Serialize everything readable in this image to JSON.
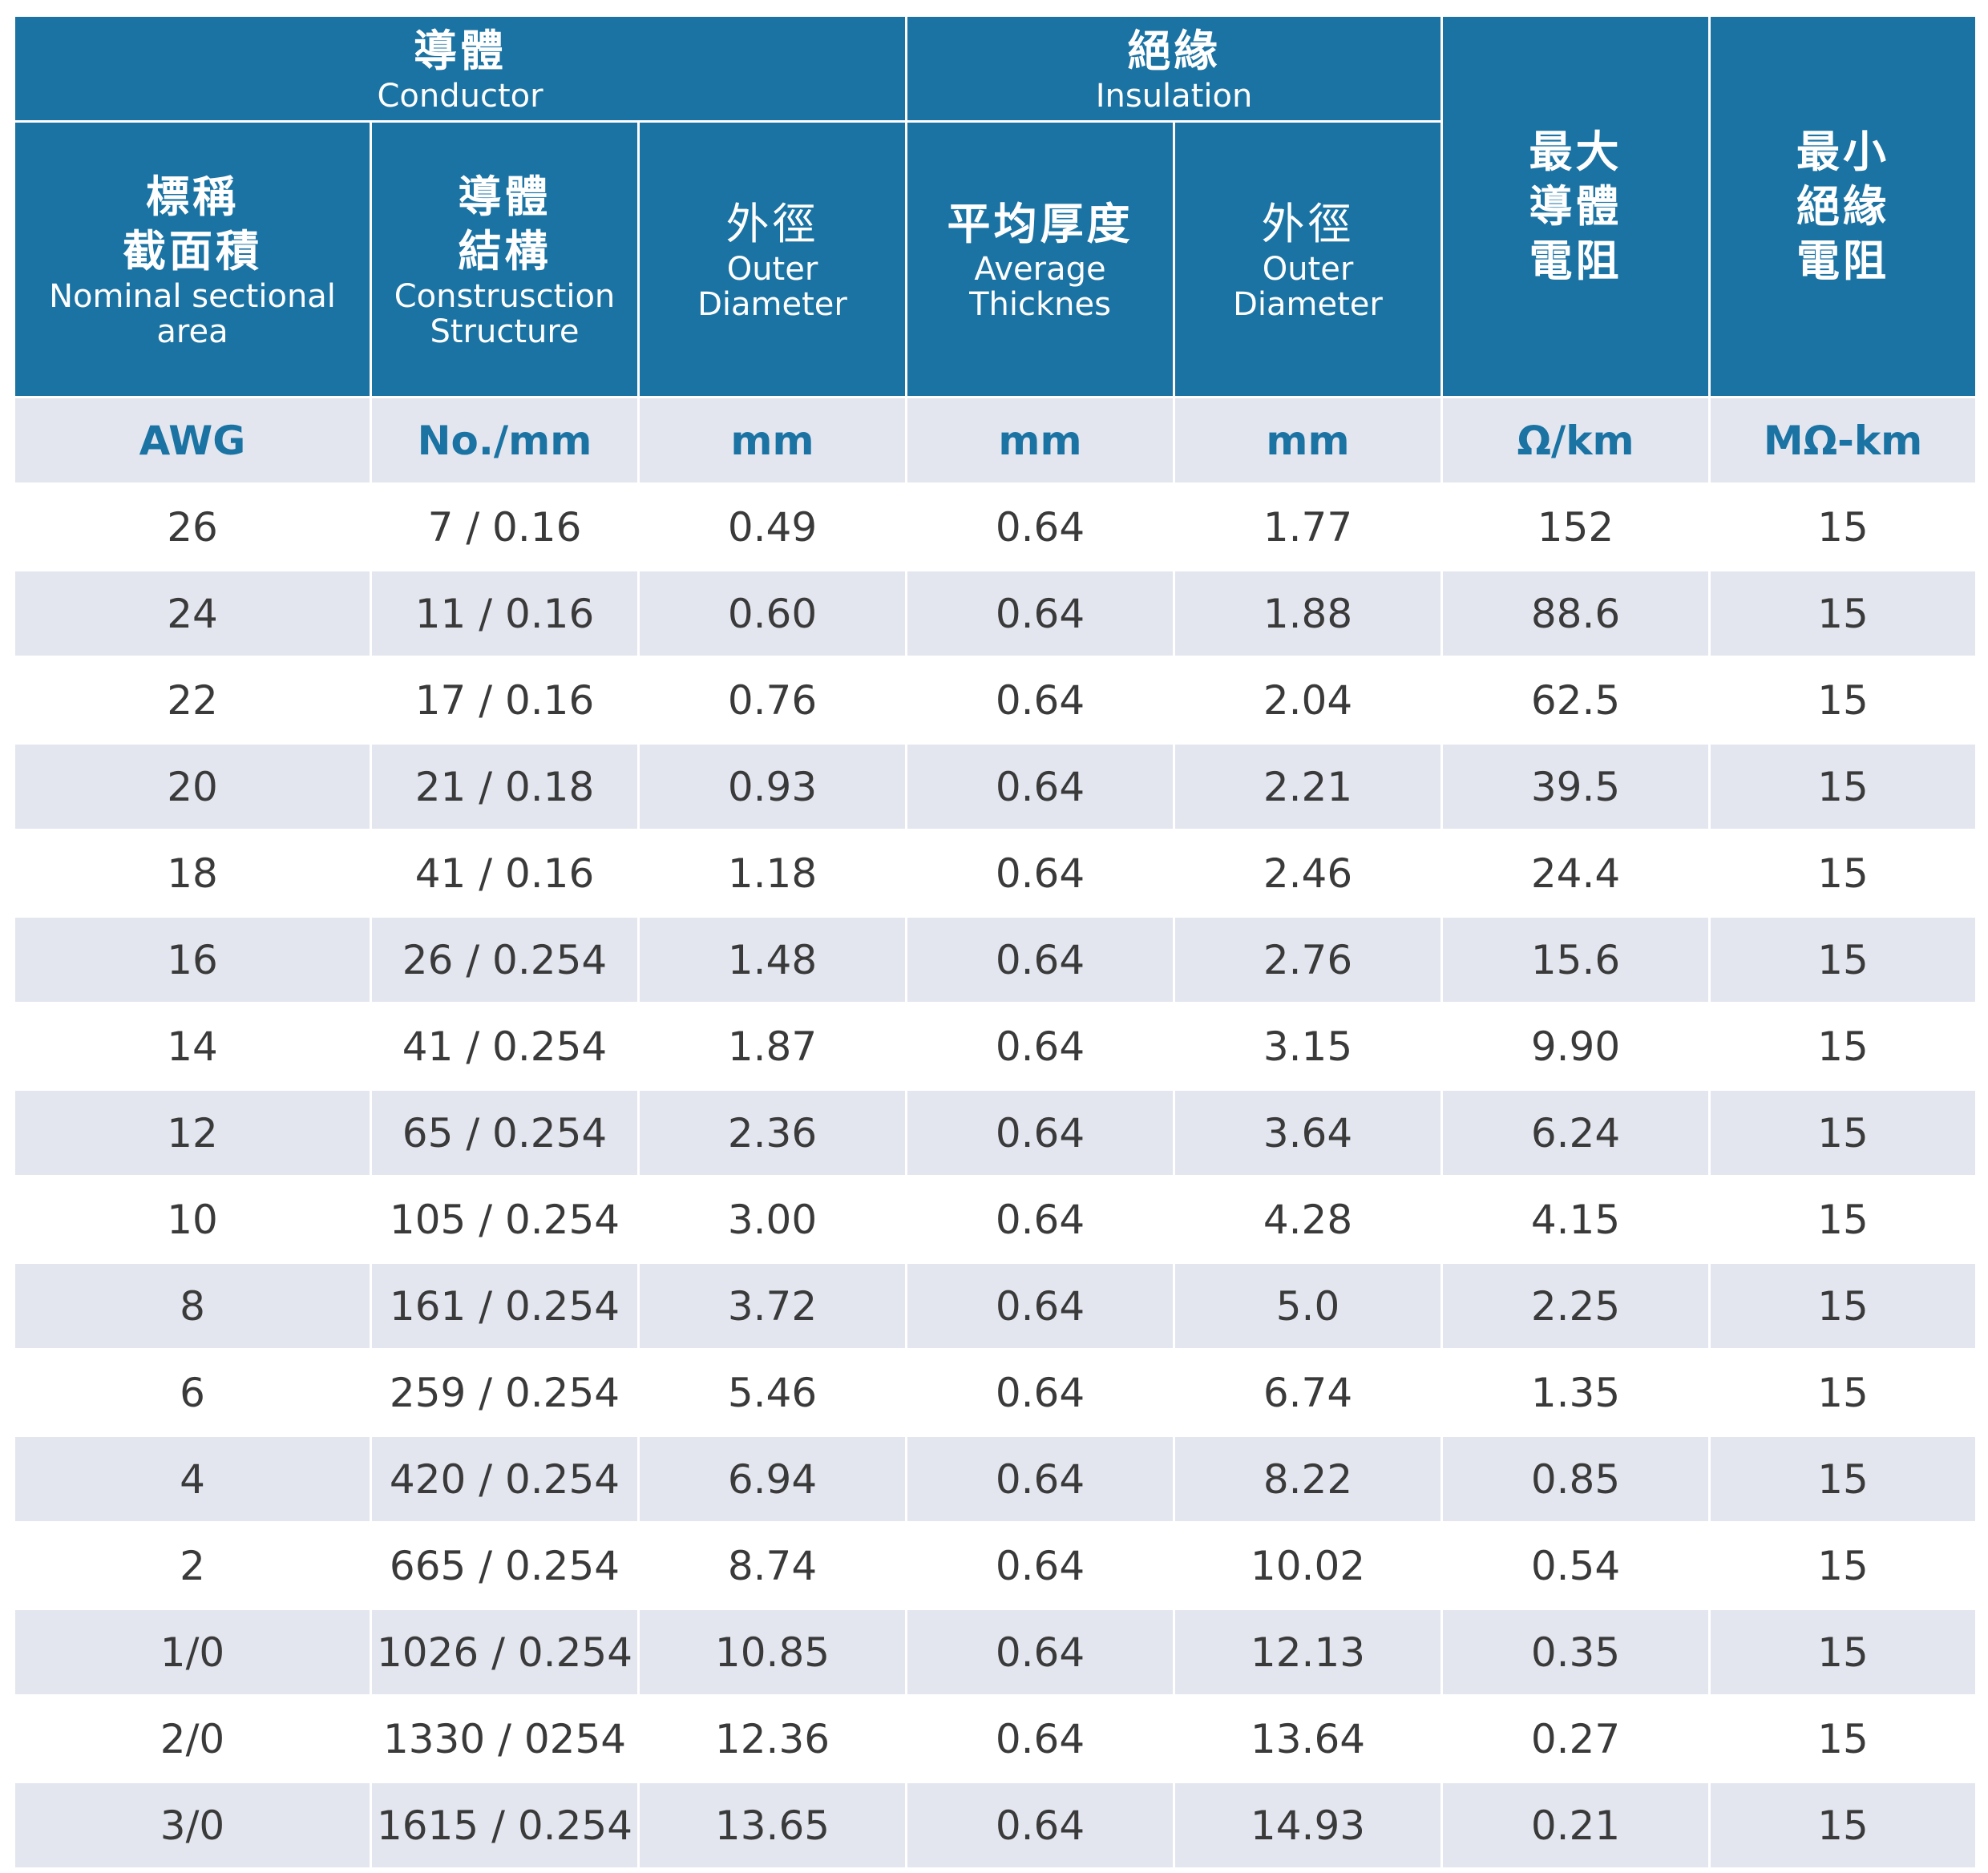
{
  "header": {
    "conductor": {
      "zh": "導體",
      "en": "Conductor"
    },
    "insulation": {
      "zh": "絕緣",
      "en": "Insulation"
    },
    "max_resistance": {
      "zh": [
        "最大",
        "導體",
        "電阻"
      ]
    },
    "min_insulation": {
      "zh": [
        "最小",
        "絕緣",
        "電阻"
      ]
    },
    "nominal": {
      "zh": [
        "標稱",
        "截面積"
      ],
      "en": [
        "Nominal sectional",
        "area"
      ]
    },
    "construction": {
      "zh": [
        "導體",
        "結構"
      ],
      "en": [
        "Construsction",
        "Structure"
      ]
    },
    "cond_outer": {
      "zh": "外徑",
      "en": [
        "Outer",
        "Diameter"
      ]
    },
    "avg_thickness": {
      "zh": "平均厚度",
      "en": [
        "Average",
        "Thicknes"
      ]
    },
    "ins_outer": {
      "zh": "外徑",
      "en": [
        "Outer",
        "Diameter"
      ]
    }
  },
  "units": [
    "AWG",
    "No./mm",
    "mm",
    "mm",
    "mm",
    "Ω/km",
    "MΩ-km"
  ],
  "rows": [
    [
      "26",
      "7 / 0.16",
      "0.49",
      "0.64",
      "1.77",
      "152",
      "15"
    ],
    [
      "24",
      "11 / 0.16",
      "0.60",
      "0.64",
      "1.88",
      "88.6",
      "15"
    ],
    [
      "22",
      "17 / 0.16",
      "0.76",
      "0.64",
      "2.04",
      "62.5",
      "15"
    ],
    [
      "20",
      "21 / 0.18",
      "0.93",
      "0.64",
      "2.21",
      "39.5",
      "15"
    ],
    [
      "18",
      "41 / 0.16",
      "1.18",
      "0.64",
      "2.46",
      "24.4",
      "15"
    ],
    [
      "16",
      "26 / 0.254",
      "1.48",
      "0.64",
      "2.76",
      "15.6",
      "15"
    ],
    [
      "14",
      "41 / 0.254",
      "1.87",
      "0.64",
      "3.15",
      "9.90",
      "15"
    ],
    [
      "12",
      "65 / 0.254",
      "2.36",
      "0.64",
      "3.64",
      "6.24",
      "15"
    ],
    [
      "10",
      "105 / 0.254",
      "3.00",
      "0.64",
      "4.28",
      "4.15",
      "15"
    ],
    [
      "8",
      "161 / 0.254",
      "3.72",
      "0.64",
      "5.0",
      "2.25",
      "15"
    ],
    [
      "6",
      "259 / 0.254",
      "5.46",
      "0.64",
      "6.74",
      "1.35",
      "15"
    ],
    [
      "4",
      "420 / 0.254",
      "6.94",
      "0.64",
      "8.22",
      "0.85",
      "15"
    ],
    [
      "2",
      "665 / 0.254",
      "8.74",
      "0.64",
      "10.02",
      "0.54",
      "15"
    ],
    [
      "1/0",
      "1026 / 0.254",
      "10.85",
      "0.64",
      "12.13",
      "0.35",
      "15"
    ],
    [
      "2/0",
      "1330 / 0254",
      "12.36",
      "0.64",
      "13.64",
      "0.27",
      "15"
    ],
    [
      "3/0",
      "1615 / 0.254",
      "13.65",
      "0.64",
      "14.93",
      "0.21",
      "15"
    ]
  ]
}
